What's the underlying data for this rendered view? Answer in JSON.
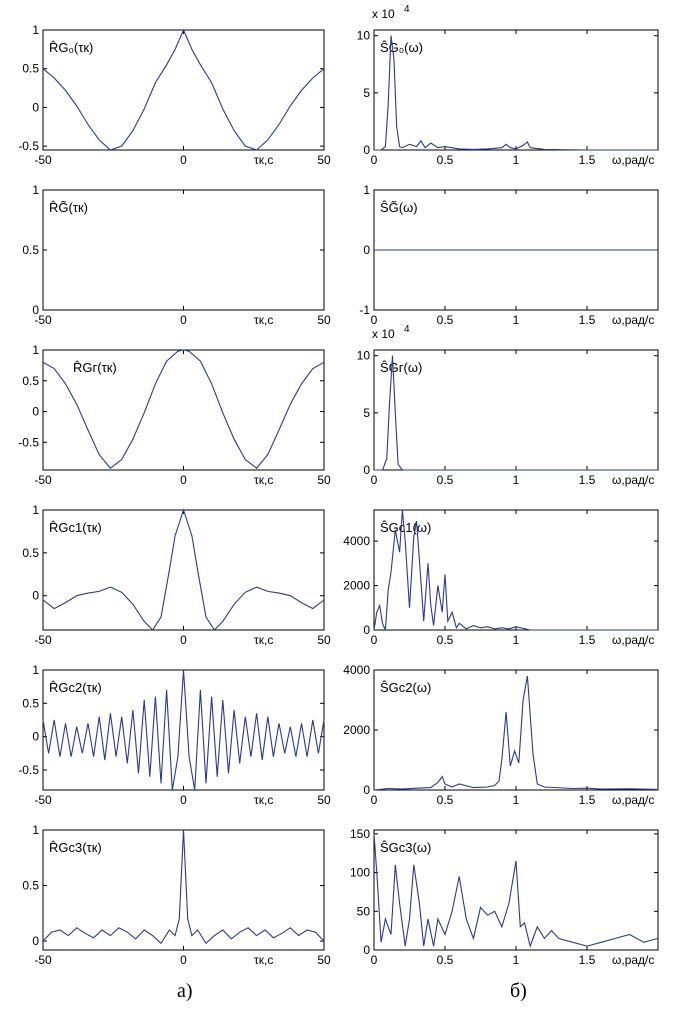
{
  "chart_data": [
    {
      "type": "line",
      "column": "left",
      "row": 0,
      "label": "R̂G₀(τк)",
      "xlabel": "τк,c",
      "xlim": [
        -50,
        50
      ],
      "ylim": [
        -0.55,
        1
      ],
      "xticks": [
        "-50",
        "0",
        "50"
      ],
      "yticks": [
        "1",
        "0.5",
        "0",
        "-0.5"
      ],
      "ytick_values": [
        1,
        0.5,
        0,
        -0.5
      ],
      "x": [
        -50,
        -46,
        -42,
        -38,
        -34,
        -30,
        -26,
        -22,
        -18,
        -14,
        -10,
        -6,
        -3,
        0,
        3,
        6,
        10,
        14,
        18,
        22,
        26,
        30,
        34,
        38,
        42,
        46,
        50
      ],
      "y": [
        0.5,
        0.38,
        0.22,
        0.02,
        -0.22,
        -0.42,
        -0.55,
        -0.5,
        -0.3,
        -0.02,
        0.32,
        0.55,
        0.75,
        1.0,
        0.75,
        0.55,
        0.32,
        -0.02,
        -0.3,
        -0.5,
        -0.55,
        -0.42,
        -0.22,
        0.02,
        0.22,
        0.38,
        0.5
      ]
    },
    {
      "type": "line",
      "column": "right",
      "row": 0,
      "label": "ŜG₀(ω)",
      "xlabel": "ω,paд/c",
      "xlim": [
        0,
        2
      ],
      "ylim": [
        0,
        10.5
      ],
      "multiplier": "x 10",
      "multiplier_exp": "4",
      "xticks": [
        "0",
        "0.5",
        "1",
        "1.5"
      ],
      "xtick_values": [
        0,
        0.5,
        1,
        1.5
      ],
      "yticks": [
        "10",
        "5",
        "0"
      ],
      "ytick_values": [
        10,
        5,
        0
      ],
      "x": [
        0,
        0.05,
        0.08,
        0.1,
        0.12,
        0.14,
        0.16,
        0.18,
        0.2,
        0.25,
        0.3,
        0.33,
        0.36,
        0.4,
        0.45,
        0.5,
        0.6,
        0.7,
        0.8,
        0.9,
        0.93,
        0.96,
        1.0,
        1.05,
        1.08,
        1.1,
        1.2,
        1.5,
        2.0
      ],
      "y": [
        0,
        0,
        0.3,
        4,
        10,
        8,
        2,
        0.3,
        0.2,
        0.5,
        0.3,
        0.8,
        0.2,
        0.6,
        0.2,
        0.3,
        0.1,
        0.05,
        0.1,
        0.2,
        0.5,
        0.2,
        0.1,
        0.4,
        0.7,
        0.2,
        0.05,
        0,
        0
      ]
    },
    {
      "type": "line",
      "column": "left",
      "row": 1,
      "label": "R̂G̃(τк)",
      "xlabel": "τк,c",
      "xlim": [
        -50,
        50
      ],
      "ylim": [
        0,
        1
      ],
      "xticks": [
        "-50",
        "0",
        "50"
      ],
      "yticks": [
        "1",
        "0.5",
        "0"
      ],
      "ytick_values": [
        1,
        0.5,
        0
      ],
      "x": [],
      "y": []
    },
    {
      "type": "line",
      "column": "right",
      "row": 1,
      "label": "ŜG̃(ω)",
      "xlabel": "ω,paд/c",
      "xlim": [
        0,
        2
      ],
      "ylim": [
        -1,
        1
      ],
      "xticks": [
        "0",
        "0.5",
        "1",
        "1.5"
      ],
      "xtick_values": [
        0,
        0.5,
        1,
        1.5
      ],
      "yticks": [
        "1",
        "0",
        "-1"
      ],
      "ytick_values": [
        1,
        0,
        -1
      ],
      "x": [
        0,
        2
      ],
      "y": [
        0,
        0
      ]
    },
    {
      "type": "line",
      "column": "left",
      "row": 2,
      "label": "R̂Gг(τк)",
      "xlabel": "τк,c",
      "xlim": [
        -50,
        50
      ],
      "ylim": [
        -0.95,
        1
      ],
      "xticks": [
        "-50",
        "0",
        "50"
      ],
      "yticks": [
        "1",
        "0.5",
        "0",
        "-0.5"
      ],
      "ytick_values": [
        1,
        0.5,
        0,
        -0.5
      ],
      "x": [
        -50,
        -46,
        -42,
        -38,
        -34,
        -30,
        -26,
        -22,
        -18,
        -14,
        -10,
        -6,
        -2,
        0,
        2,
        6,
        10,
        14,
        18,
        22,
        26,
        30,
        34,
        38,
        42,
        46,
        50
      ],
      "y": [
        0.8,
        0.7,
        0.45,
        0.12,
        -0.3,
        -0.7,
        -0.92,
        -0.78,
        -0.45,
        -0.02,
        0.45,
        0.82,
        0.98,
        1.0,
        0.98,
        0.82,
        0.45,
        -0.02,
        -0.45,
        -0.78,
        -0.92,
        -0.7,
        -0.3,
        0.12,
        0.45,
        0.7,
        0.8
      ]
    },
    {
      "type": "line",
      "column": "right",
      "row": 2,
      "label": "ŜGг(ω)",
      "xlabel": "ω,paд/c",
      "xlim": [
        0,
        2
      ],
      "ylim": [
        0,
        10.5
      ],
      "multiplier": "x 10",
      "multiplier_exp": "4",
      "xticks": [
        "0",
        "0.5",
        "1",
        "1.5"
      ],
      "xtick_values": [
        0,
        0.5,
        1,
        1.5
      ],
      "yticks": [
        "10",
        "5",
        "0"
      ],
      "ytick_values": [
        10,
        5,
        0
      ],
      "x": [
        0,
        0.06,
        0.09,
        0.11,
        0.13,
        0.15,
        0.17,
        0.2,
        2.0
      ],
      "y": [
        0,
        0,
        1,
        6,
        10,
        5,
        0.5,
        0,
        0
      ]
    },
    {
      "type": "line",
      "column": "left",
      "row": 3,
      "label": "R̂Gc1(τк)",
      "xlabel": "τк,c",
      "xlim": [
        -50,
        50
      ],
      "ylim": [
        -0.4,
        1
      ],
      "xticks": [
        "-50",
        "0",
        "50"
      ],
      "yticks": [
        "1",
        "0.5",
        "0"
      ],
      "ytick_values": [
        1,
        0.5,
        0
      ],
      "x": [
        -50,
        -46,
        -42,
        -38,
        -34,
        -30,
        -26,
        -22,
        -18,
        -14,
        -11,
        -8,
        -5,
        -3,
        0,
        3,
        5,
        8,
        11,
        14,
        18,
        22,
        26,
        30,
        34,
        38,
        42,
        46,
        50
      ],
      "y": [
        -0.05,
        -0.15,
        -0.08,
        0.0,
        0.03,
        0.05,
        0.1,
        0.04,
        -0.1,
        -0.3,
        -0.4,
        -0.25,
        0.3,
        0.7,
        1.0,
        0.7,
        0.3,
        -0.25,
        -0.4,
        -0.3,
        -0.1,
        0.04,
        0.1,
        0.05,
        0.03,
        0.0,
        -0.08,
        -0.15,
        -0.05
      ]
    },
    {
      "type": "line",
      "column": "right",
      "row": 3,
      "label": "ŜGc1(ω)",
      "xlabel": "ω,paд/c",
      "xlim": [
        0,
        2
      ],
      "ylim": [
        0,
        5400
      ],
      "xticks": [
        "0",
        "0.5",
        "1",
        "1.5"
      ],
      "xtick_values": [
        0,
        0.5,
        1,
        1.5
      ],
      "yticks": [
        "4000",
        "2000",
        "0"
      ],
      "ytick_values": [
        4000,
        2000,
        0
      ],
      "x": [
        0,
        0.02,
        0.04,
        0.06,
        0.08,
        0.1,
        0.12,
        0.15,
        0.18,
        0.2,
        0.22,
        0.25,
        0.28,
        0.3,
        0.33,
        0.35,
        0.38,
        0.4,
        0.42,
        0.45,
        0.48,
        0.5,
        0.52,
        0.55,
        0.58,
        0.6,
        0.65,
        0.7,
        0.75,
        0.8,
        0.85,
        0.9,
        0.95,
        1.0,
        1.1,
        1.5,
        2.0
      ],
      "y": [
        0,
        800,
        1100,
        300,
        0,
        1800,
        2600,
        4500,
        3500,
        5400,
        4000,
        1000,
        4200,
        4900,
        2200,
        400,
        3000,
        1100,
        200,
        2000,
        800,
        2500,
        400,
        800,
        100,
        300,
        50,
        200,
        100,
        150,
        50,
        100,
        50,
        150,
        0,
        0,
        0
      ]
    },
    {
      "type": "line",
      "column": "left",
      "row": 4,
      "label": "R̂Gc2(τк)",
      "xlabel": "τк,c",
      "xlim": [
        -50,
        50
      ],
      "ylim": [
        -0.8,
        1
      ],
      "xticks": [
        "-50",
        "0",
        "50"
      ],
      "yticks": [
        "1",
        "0.5",
        "0",
        "-0.5"
      ],
      "ytick_values": [
        1,
        0.5,
        0,
        -0.5
      ],
      "x": [
        -50,
        -48,
        -46,
        -44,
        -42,
        -40,
        -38,
        -36,
        -34,
        -32,
        -30,
        -28,
        -26,
        -24,
        -22,
        -20,
        -18,
        -16,
        -14,
        -12,
        -10,
        -8,
        -6,
        -4,
        -2,
        0,
        2,
        4,
        6,
        8,
        10,
        12,
        14,
        16,
        18,
        20,
        22,
        24,
        26,
        28,
        30,
        32,
        34,
        36,
        38,
        40,
        42,
        44,
        46,
        48,
        50
      ],
      "y": [
        0.25,
        -0.25,
        0.25,
        -0.3,
        0.2,
        -0.3,
        0.15,
        -0.25,
        0.2,
        -0.3,
        0.3,
        -0.35,
        0.35,
        -0.3,
        0.3,
        -0.4,
        0.4,
        -0.55,
        0.55,
        -0.6,
        0.6,
        -0.7,
        0.7,
        -0.8,
        -0.3,
        1.0,
        -0.3,
        -0.8,
        0.7,
        -0.7,
        0.6,
        -0.6,
        0.55,
        -0.55,
        0.4,
        -0.4,
        0.3,
        -0.3,
        0.35,
        -0.35,
        0.3,
        -0.3,
        0.2,
        -0.25,
        0.15,
        -0.3,
        0.2,
        -0.3,
        0.25,
        -0.25,
        0.25
      ]
    },
    {
      "type": "line",
      "column": "right",
      "row": 4,
      "label": "ŜGc2(ω)",
      "xlabel": "ω,paд/c",
      "xlim": [
        0,
        2
      ],
      "ylim": [
        0,
        4000
      ],
      "xticks": [
        "0",
        "0.5",
        "1",
        "1.5"
      ],
      "xtick_values": [
        0,
        0.5,
        1,
        1.5
      ],
      "yticks": [
        "4000",
        "2000",
        "0"
      ],
      "ytick_values": [
        4000,
        2000,
        0
      ],
      "x": [
        0,
        0.1,
        0.2,
        0.3,
        0.4,
        0.45,
        0.48,
        0.5,
        0.55,
        0.6,
        0.7,
        0.8,
        0.85,
        0.88,
        0.9,
        0.93,
        0.96,
        0.99,
        1.02,
        1.05,
        1.08,
        1.12,
        1.15,
        1.2,
        1.4,
        1.5,
        1.6,
        1.8,
        2.0
      ],
      "y": [
        0,
        50,
        30,
        60,
        80,
        250,
        450,
        200,
        100,
        200,
        80,
        100,
        150,
        300,
        1000,
        2600,
        800,
        1300,
        900,
        3000,
        3800,
        1200,
        200,
        100,
        50,
        60,
        30,
        40,
        20
      ]
    },
    {
      "type": "line",
      "column": "left",
      "row": 5,
      "label": "R̂Gc3(τк)",
      "xlabel": "τк,c",
      "xlim": [
        -50,
        50
      ],
      "ylim": [
        -0.08,
        1
      ],
      "xticks": [
        "-50",
        "0",
        "50"
      ],
      "yticks": [
        "1",
        "0.5",
        "0"
      ],
      "ytick_values": [
        1,
        0.5,
        0
      ],
      "x": [
        -50,
        -47,
        -44,
        -41,
        -38,
        -35,
        -32,
        -29,
        -26,
        -23,
        -20,
        -17,
        -14,
        -11,
        -8,
        -5,
        -3,
        -1.5,
        0,
        1.5,
        3,
        5,
        8,
        11,
        14,
        17,
        20,
        23,
        26,
        29,
        32,
        35,
        38,
        41,
        44,
        47,
        50
      ],
      "y": [
        0.0,
        0.08,
        0.1,
        0.05,
        0.12,
        0.07,
        0.03,
        0.1,
        0.05,
        0.12,
        0.08,
        0.02,
        0.1,
        0.05,
        -0.02,
        0.1,
        0.05,
        0.2,
        1.0,
        0.2,
        0.05,
        0.1,
        -0.02,
        0.05,
        0.1,
        0.02,
        0.08,
        0.12,
        0.05,
        0.1,
        0.03,
        0.07,
        0.12,
        0.05,
        0.1,
        0.08,
        0.0
      ]
    },
    {
      "type": "line",
      "column": "right",
      "row": 5,
      "label": "ŜGc3(ω)",
      "xlabel": "ω,paд/c",
      "xlim": [
        0,
        2
      ],
      "ylim": [
        0,
        155
      ],
      "xticks": [
        "0",
        "0.5",
        "1",
        "1.5"
      ],
      "xtick_values": [
        0,
        0.5,
        1,
        1.5
      ],
      "yticks": [
        "150",
        "100",
        "50",
        "0"
      ],
      "ytick_values": [
        150,
        100,
        50,
        0
      ],
      "x": [
        0,
        0.02,
        0.05,
        0.08,
        0.12,
        0.15,
        0.18,
        0.22,
        0.25,
        0.28,
        0.32,
        0.35,
        0.38,
        0.42,
        0.45,
        0.5,
        0.55,
        0.6,
        0.65,
        0.7,
        0.75,
        0.8,
        0.85,
        0.9,
        0.95,
        1.0,
        1.03,
        1.06,
        1.1,
        1.15,
        1.2,
        1.25,
        1.3,
        1.4,
        1.5,
        1.6,
        1.7,
        1.8,
        1.9,
        2.0
      ],
      "y": [
        150,
        100,
        10,
        40,
        20,
        110,
        60,
        5,
        40,
        110,
        60,
        5,
        40,
        5,
        40,
        20,
        50,
        95,
        40,
        15,
        55,
        45,
        50,
        30,
        60,
        115,
        30,
        35,
        5,
        30,
        15,
        25,
        15,
        10,
        5,
        10,
        15,
        20,
        10,
        15
      ]
    }
  ],
  "captions": {
    "left": "a)",
    "right": "б)"
  }
}
